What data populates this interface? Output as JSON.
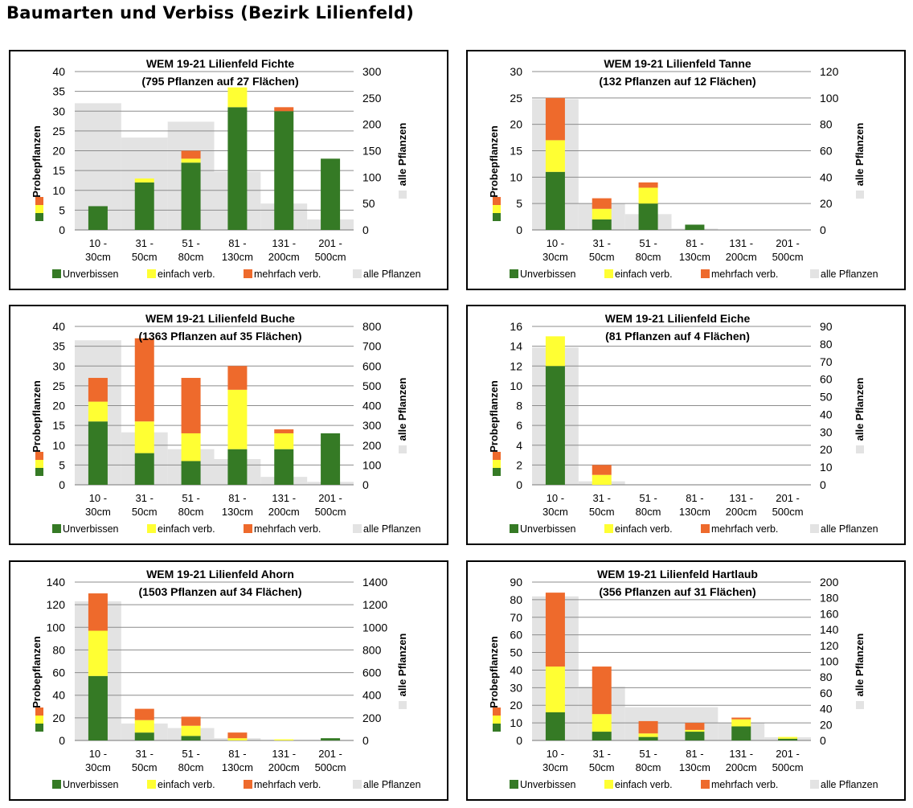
{
  "page": {
    "title": "Baumarten und Verbiss (Bezirk Lilienfeld)"
  },
  "shared": {
    "categories": [
      "10 -\n30cm",
      "31 -\n50cm",
      "51 -\n80cm",
      "81 -\n130cm",
      "131 -\n200cm",
      "201 -\n500cm"
    ],
    "ylabel_left": "Probepflanzen",
    "ylabel_right": "alle Pflanzen",
    "legend": [
      "Unverbissen",
      "einfach verb.",
      "mehrfach verb.",
      "alle Pflanzen"
    ],
    "colors": {
      "unverbissen": "#357A25",
      "einfach": "#FFFF33",
      "mehrfach": "#EE6A2C",
      "alle": "#E3E3E3",
      "grid": "#8C8C8C"
    }
  },
  "chart_data": [
    {
      "type": "bar",
      "title": "WEM 19-21 Lilienfeld Fichte",
      "subtitle": "(795 Pflanzen  auf 27 Flächen)",
      "ylim": [
        0,
        40
      ],
      "ystep": 5,
      "y2lim": [
        0,
        300
      ],
      "y2step": 50,
      "series": [
        {
          "name": "Unverbissen",
          "values": [
            6,
            12,
            17,
            31,
            30,
            18
          ]
        },
        {
          "name": "einfach verb.",
          "values": [
            0,
            1,
            1,
            5,
            0,
            0
          ]
        },
        {
          "name": "mehrfach verb.",
          "values": [
            0,
            0,
            2,
            0,
            1,
            0
          ]
        },
        {
          "name": "alle Pflanzen",
          "axis": "right",
          "values": [
            240,
            175,
            205,
            110,
            50,
            20
          ]
        }
      ]
    },
    {
      "type": "bar",
      "title": "WEM 19-21 Lilienfeld Tanne",
      "subtitle": "(132 Pflanzen  auf 12 Flächen)",
      "ylim": [
        0,
        30
      ],
      "ystep": 5,
      "y2lim": [
        0,
        120
      ],
      "y2step": 20,
      "series": [
        {
          "name": "Unverbissen",
          "values": [
            11,
            2,
            5,
            1,
            0,
            0
          ]
        },
        {
          "name": "einfach verb.",
          "values": [
            6,
            2,
            3,
            0,
            0,
            0
          ]
        },
        {
          "name": "mehrfach verb.",
          "values": [
            8,
            2,
            1,
            0,
            0,
            0
          ]
        },
        {
          "name": "alle Pflanzen",
          "axis": "right",
          "values": [
            99,
            20,
            12,
            1,
            0,
            0
          ]
        }
      ]
    },
    {
      "type": "bar",
      "title": "WEM 19-21 Lilienfeld Buche",
      "subtitle": "(1363 Pflanzen  auf 35 Flächen)",
      "ylim": [
        0,
        40
      ],
      "ystep": 5,
      "y2lim": [
        0,
        800
      ],
      "y2step": 100,
      "series": [
        {
          "name": "Unverbissen",
          "values": [
            16,
            8,
            6,
            9,
            9,
            13
          ]
        },
        {
          "name": "einfach verb.",
          "values": [
            5,
            8,
            7,
            15,
            4,
            0
          ]
        },
        {
          "name": "mehrfach verb.",
          "values": [
            6,
            21,
            14,
            6,
            1,
            0
          ]
        },
        {
          "name": "alle Pflanzen",
          "axis": "right",
          "values": [
            730,
            265,
            180,
            130,
            40,
            15
          ]
        }
      ]
    },
    {
      "type": "bar",
      "title": "WEM 19-21 Lilienfeld Eiche",
      "subtitle": "(81 Pflanzen  auf 4 Flächen)",
      "ylim": [
        0,
        16
      ],
      "ystep": 2,
      "y2lim": [
        0,
        90
      ],
      "y2step": 10,
      "series": [
        {
          "name": "Unverbissen",
          "values": [
            12,
            0,
            0,
            0,
            0,
            0
          ]
        },
        {
          "name": "einfach verb.",
          "values": [
            3,
            1,
            0,
            0,
            0,
            0
          ]
        },
        {
          "name": "mehrfach verb.",
          "values": [
            0,
            1,
            0,
            0,
            0,
            0
          ]
        },
        {
          "name": "alle Pflanzen",
          "axis": "right",
          "values": [
            78,
            2,
            0,
            0,
            0,
            0
          ]
        }
      ]
    },
    {
      "type": "bar",
      "title": "WEM 19-21 Lilienfeld Ahorn",
      "subtitle": "(1503 Pflanzen  auf 34 Flächen)",
      "ylim": [
        0,
        140
      ],
      "ystep": 20,
      "y2lim": [
        0,
        1400
      ],
      "y2step": 200,
      "series": [
        {
          "name": "Unverbissen",
          "values": [
            57,
            7,
            4,
            0,
            0,
            2
          ]
        },
        {
          "name": "einfach verb.",
          "values": [
            40,
            11,
            9,
            2,
            1,
            0
          ]
        },
        {
          "name": "mehrfach verb.",
          "values": [
            33,
            10,
            8,
            5,
            0,
            0
          ]
        },
        {
          "name": "alle Pflanzen",
          "axis": "right",
          "values": [
            1230,
            150,
            110,
            20,
            5,
            5
          ]
        }
      ]
    },
    {
      "type": "bar",
      "title": "WEM 19-21 Lilienfeld Hartlaub",
      "subtitle": "(356 Pflanzen  auf 31 Flächen)",
      "ylim": [
        0,
        90
      ],
      "ystep": 10,
      "y2lim": [
        0,
        200
      ],
      "y2step": 20,
      "series": [
        {
          "name": "Unverbissen",
          "values": [
            16,
            5,
            2,
            5,
            8,
            1
          ]
        },
        {
          "name": "einfach verb.",
          "values": [
            26,
            10,
            2,
            1,
            4,
            1
          ]
        },
        {
          "name": "mehrfach verb.",
          "values": [
            42,
            27,
            7,
            4,
            1,
            0
          ]
        },
        {
          "name": "alle Pflanzen",
          "axis": "right",
          "values": [
            182,
            68,
            42,
            42,
            22,
            4
          ]
        }
      ]
    }
  ]
}
